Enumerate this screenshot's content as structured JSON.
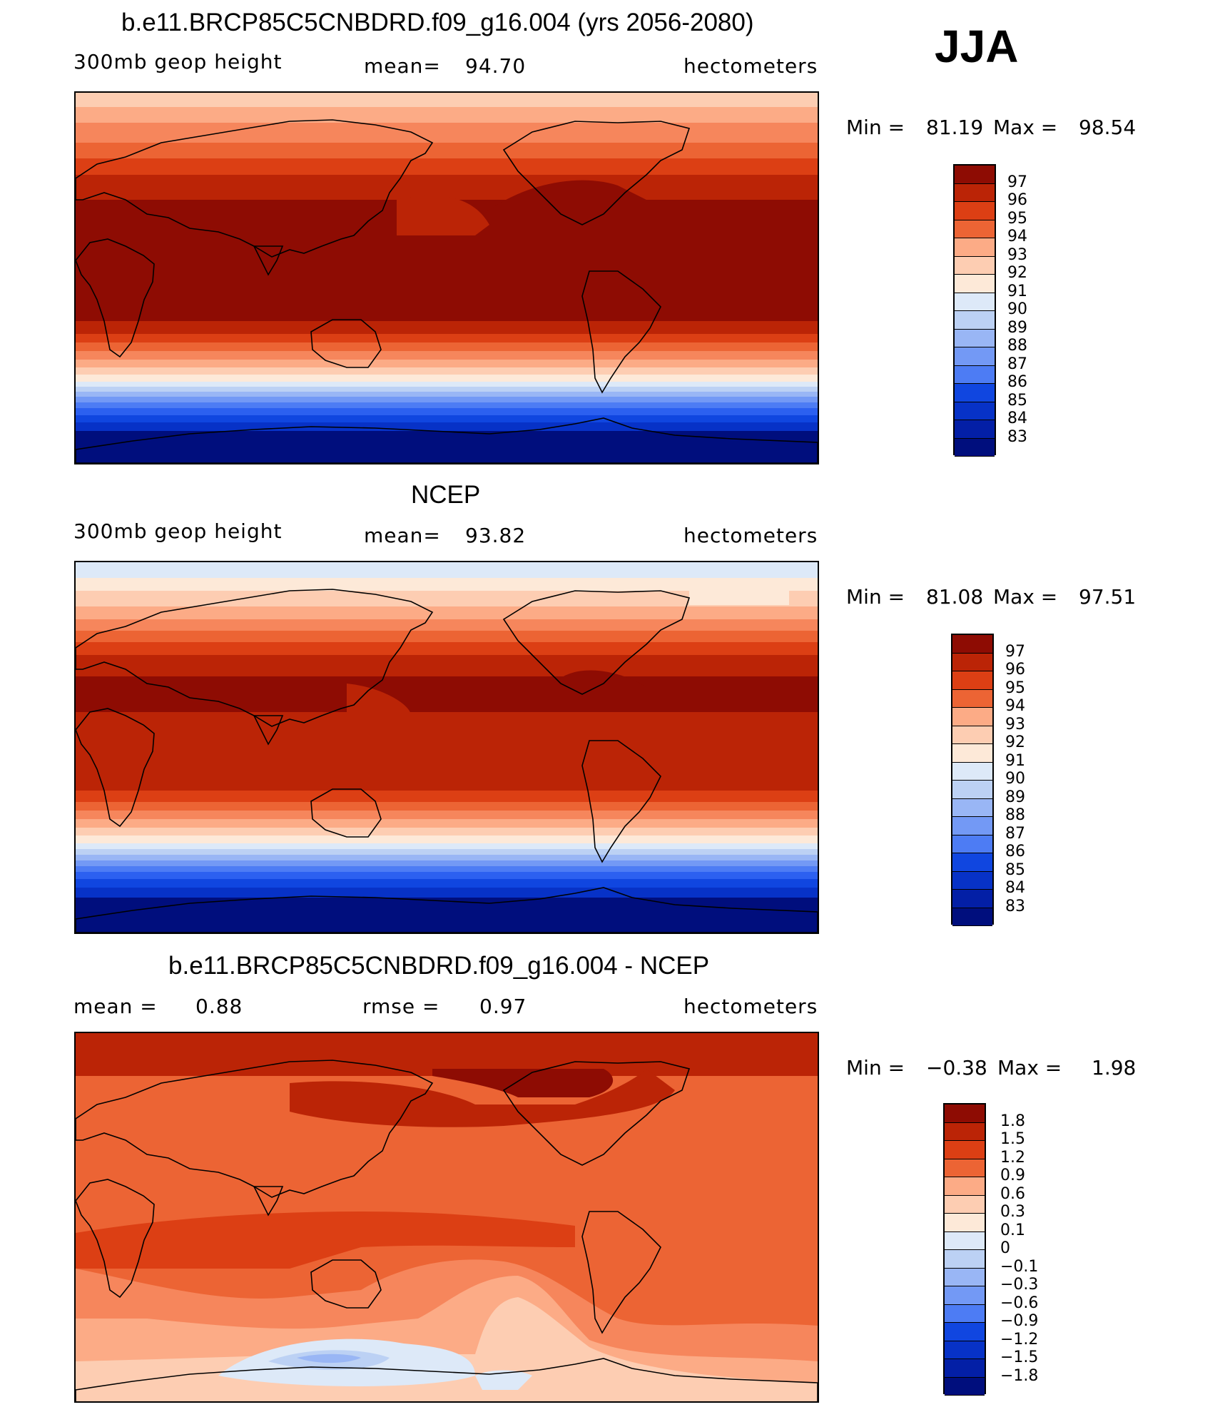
{
  "season": "JJA",
  "colors": {
    "ramp": [
      "#000e7d",
      "#031fa6",
      "#0732c7",
      "#1046e0",
      "#2c60f0",
      "#4d7cf4",
      "#7399f5",
      "#99b6f5",
      "#bcd1f4",
      "#dde9f8",
      "#fde9d8",
      "#fdcdb2",
      "#fcab86",
      "#f6865c",
      "#ec6434",
      "#dc3f14",
      "#bb2406",
      "#8e0c03"
    ],
    "outline": "#000000"
  },
  "panels": [
    {
      "title": "b.e11.BRCP85C5CNBDRD.f09_g16.004 (yrs 2056-2080)",
      "variable": "300mb geop height",
      "stat1_label": "mean=",
      "stat1_value": "94.70",
      "units": "hectometers",
      "min_label": "Min =",
      "min_value": "81.19",
      "max_label": "Max =",
      "max_value": "98.54",
      "levels": [
        "97",
        "96",
        "95",
        "94",
        "93",
        "92",
        "91",
        "90",
        "89",
        "88",
        "87",
        "86",
        "85",
        "84",
        "83"
      ]
    },
    {
      "title": "NCEP",
      "variable": "300mb geop height",
      "stat1_label": "mean=",
      "stat1_value": "93.82",
      "units": "hectometers",
      "min_label": "Min =",
      "min_value": "81.08",
      "max_label": "Max =",
      "max_value": "97.51",
      "levels": [
        "97",
        "96",
        "95",
        "94",
        "93",
        "92",
        "91",
        "90",
        "89",
        "88",
        "87",
        "86",
        "85",
        "84",
        "83"
      ]
    },
    {
      "title": "b.e11.BRCP85C5CNBDRD.f09_g16.004 - NCEP",
      "stat1_label": "mean =",
      "stat1_value": "0.88",
      "stat2_label": "rmse =",
      "stat2_value": "0.97",
      "units": "hectometers",
      "min_label": "Min =",
      "min_value": "−0.38",
      "max_label": "Max =",
      "max_value": "1.98",
      "levels": [
        "1.8",
        "1.5",
        "1.2",
        "0.9",
        "0.6",
        "0.3",
        "0.1",
        "0",
        "−0.1",
        "−0.3",
        "−0.6",
        "−0.9",
        "−1.2",
        "−1.5",
        "−1.8"
      ]
    }
  ]
}
